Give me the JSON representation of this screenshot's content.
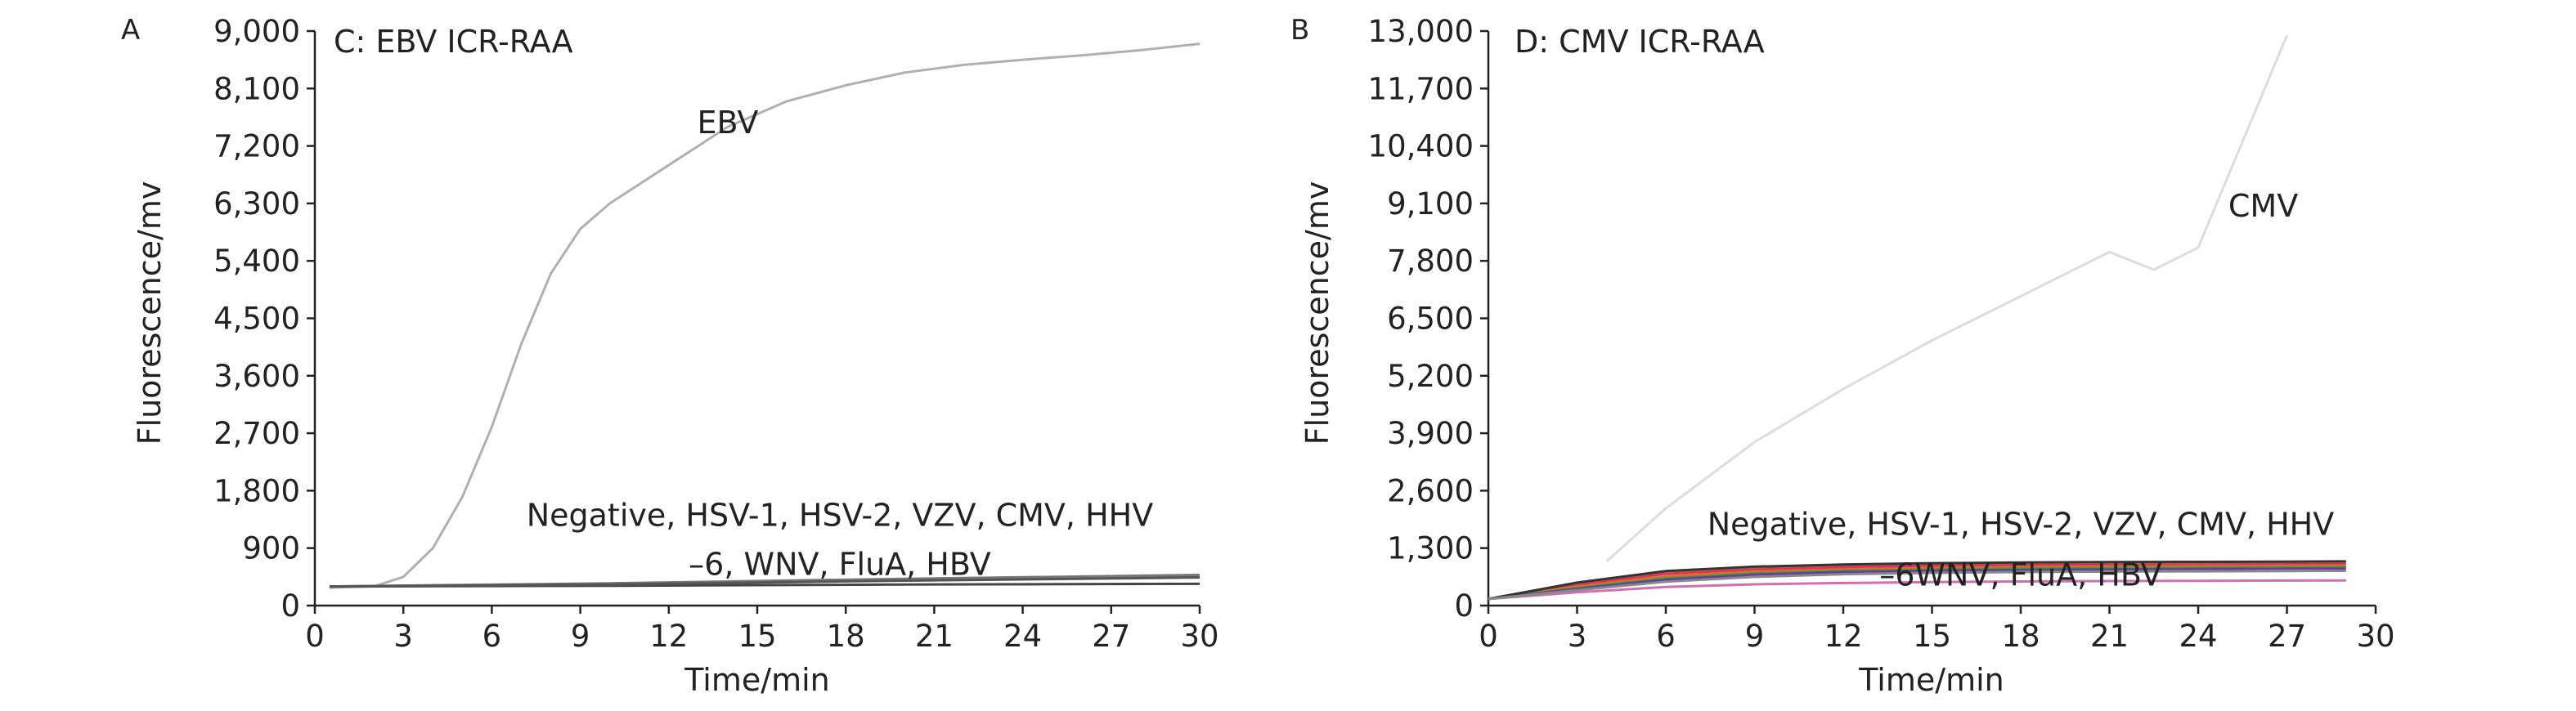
{
  "chart_data": [
    {
      "type": "line",
      "panel_letter": "A",
      "title": "C: EBV ICR-RAA",
      "xlabel": "Time/min",
      "ylabel": "Fluorescence/mv",
      "xlim": [
        0,
        30
      ],
      "ylim": [
        0,
        9000
      ],
      "xticks": [
        0,
        3,
        6,
        9,
        12,
        15,
        18,
        21,
        24,
        27,
        30
      ],
      "yticks": [
        0,
        900,
        1800,
        2700,
        3600,
        4500,
        5400,
        6300,
        7200,
        8100,
        9000
      ],
      "ytick_labels": [
        "0",
        "900",
        "1,800",
        "2,700",
        "3,600",
        "4,500",
        "5,400",
        "6,300",
        "7,200",
        "8,100",
        "9,000"
      ],
      "annotations": [
        {
          "text": "EBV",
          "x": 14,
          "y": 7400
        },
        {
          "text": "Negative, HSV-1, HSV-2, VZV, CMV, HHV",
          "x": 17.8,
          "y": 1250
        },
        {
          "text": "–6, WNV, FluA, HBV",
          "x": 17.8,
          "y": 480
        }
      ],
      "series": [
        {
          "name": "EBV",
          "color": "#b0b0b0",
          "x": [
            0.5,
            2,
            3,
            4,
            5,
            6,
            7,
            8,
            9,
            10,
            12,
            14,
            16,
            18,
            20,
            22,
            24,
            26,
            28,
            30
          ],
          "values": [
            280,
            300,
            450,
            900,
            1700,
            2800,
            4100,
            5200,
            5900,
            6300,
            6900,
            7500,
            7900,
            8150,
            8350,
            8470,
            8550,
            8620,
            8700,
            8800
          ]
        },
        {
          "name": "Negative",
          "color": "#444444",
          "x": [
            0.5,
            10,
            20,
            30
          ],
          "values": [
            300,
            310,
            330,
            340
          ]
        },
        {
          "name": "HSV-1",
          "color": "#666666",
          "x": [
            0.5,
            10,
            20,
            30
          ],
          "values": [
            300,
            340,
            400,
            460
          ]
        },
        {
          "name": "HSV-2",
          "color": "#777777",
          "x": [
            0.5,
            10,
            20,
            30
          ],
          "values": [
            300,
            350,
            420,
            480
          ]
        },
        {
          "name": "VZV",
          "color": "#555555",
          "x": [
            0.5,
            10,
            20,
            30
          ],
          "values": [
            300,
            330,
            390,
            440
          ]
        }
      ]
    },
    {
      "type": "line",
      "panel_letter": "B",
      "title": "D: CMV ICR-RAA",
      "xlabel": "Time/min",
      "ylabel": "Fluorescence/mv",
      "xlim": [
        0,
        30
      ],
      "ylim": [
        0,
        13000
      ],
      "xticks": [
        0,
        3,
        6,
        9,
        12,
        15,
        18,
        21,
        24,
        27,
        30
      ],
      "yticks": [
        0,
        1300,
        2600,
        3900,
        5200,
        6500,
        7800,
        9100,
        10400,
        11700,
        13000
      ],
      "ytick_labels": [
        "0",
        "1,300",
        "2,600",
        "3,900",
        "5,200",
        "6,500",
        "7,800",
        "9,100",
        "10,400",
        "11,700",
        "13,000"
      ],
      "annotations": [
        {
          "text": "CMV",
          "x": 26.2,
          "y": 8800
        },
        {
          "text": "Negative, HSV-1, HSV-2, VZV, CMV, HHV",
          "x": 18,
          "y": 1600
        },
        {
          "text": "–6WNV, FluA, HBV",
          "x": 18,
          "y": 450
        }
      ],
      "series": [
        {
          "name": "CMV",
          "color": "#dddddd",
          "x": [
            4,
            6,
            9,
            12,
            15,
            18,
            21,
            22.5,
            24,
            27
          ],
          "values": [
            1000,
            2200,
            3700,
            4900,
            6000,
            7000,
            8000,
            7600,
            8100,
            12900
          ]
        },
        {
          "name": "Negative",
          "color": "#c8a000",
          "x": [
            0,
            3,
            6,
            9,
            12,
            15,
            18,
            21,
            24,
            27,
            29
          ],
          "values": [
            150,
            500,
            760,
            860,
            910,
            940,
            960,
            970,
            975,
            980,
            985
          ]
        },
        {
          "name": "HSV-1",
          "color": "#e03060",
          "x": [
            0,
            3,
            6,
            9,
            12,
            15,
            18,
            21,
            24,
            27,
            29
          ],
          "values": [
            150,
            470,
            720,
            820,
            870,
            900,
            915,
            925,
            930,
            935,
            940
          ]
        },
        {
          "name": "HSV-2",
          "color": "#e07020",
          "x": [
            0,
            3,
            6,
            9,
            12,
            15,
            18,
            21,
            24,
            27,
            29
          ],
          "values": [
            150,
            430,
            660,
            770,
            820,
            850,
            870,
            880,
            890,
            895,
            900
          ]
        },
        {
          "name": "VZV",
          "color": "#40a040",
          "x": [
            0,
            3,
            6,
            9,
            12,
            15,
            18,
            21,
            24,
            27,
            29
          ],
          "values": [
            150,
            400,
            620,
            730,
            790,
            820,
            840,
            850,
            860,
            865,
            870
          ]
        },
        {
          "name": "HHV-6",
          "color": "#6a3d9a",
          "x": [
            0,
            3,
            6,
            9,
            12,
            15,
            18,
            21,
            24,
            27,
            29
          ],
          "values": [
            150,
            380,
            590,
            700,
            760,
            790,
            810,
            820,
            830,
            835,
            840
          ]
        },
        {
          "name": "WNV",
          "color": "#333333",
          "x": [
            0,
            3,
            6,
            9,
            12,
            15,
            18,
            21,
            24,
            27,
            29
          ],
          "values": [
            150,
            520,
            780,
            880,
            930,
            960,
            975,
            985,
            990,
            995,
            1000
          ]
        },
        {
          "name": "FluA",
          "color": "#d070b0",
          "x": [
            0,
            3,
            6,
            9,
            12,
            15,
            18,
            21,
            24,
            27,
            29
          ],
          "values": [
            150,
            300,
            420,
            480,
            510,
            530,
            545,
            555,
            560,
            565,
            570
          ]
        },
        {
          "name": "HBV",
          "color": "#888888",
          "x": [
            0,
            3,
            6,
            9,
            12,
            15,
            18,
            21,
            24,
            27,
            29
          ],
          "values": [
            150,
            350,
            540,
            650,
            710,
            740,
            760,
            770,
            775,
            780,
            785
          ]
        }
      ]
    }
  ]
}
